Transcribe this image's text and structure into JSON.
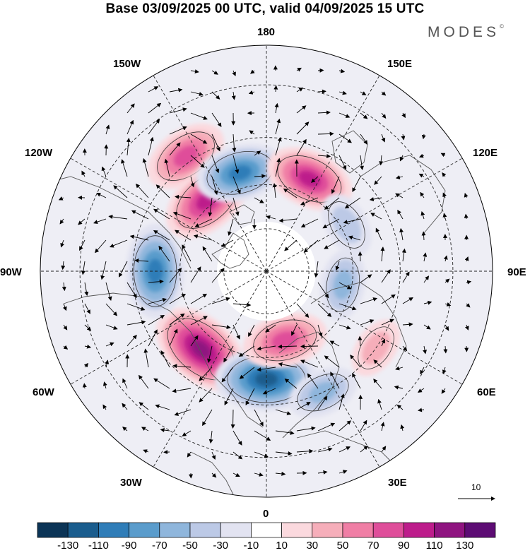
{
  "title": "Base 03/09/2025 00 UTC, valid 04/09/2025 15 UTC",
  "brand": {
    "name": "MODES",
    "mark": "©"
  },
  "map": {
    "projection": "north-polar-stereographic",
    "longitude_labels": [
      "180",
      "150E",
      "120E",
      "90E",
      "60E",
      "30E",
      "0",
      "30W",
      "60W",
      "90W",
      "120W",
      "150W"
    ],
    "vector_reference": {
      "label": "10"
    },
    "anomaly_centers": [
      {
        "name": "atlantic-high",
        "value": 120,
        "lon": -40,
        "lat": 55
      },
      {
        "name": "europe-low",
        "value": -120,
        "lon": 0,
        "lat": 53
      },
      {
        "name": "canada-low",
        "value": -100,
        "lon": -90,
        "lat": 52
      },
      {
        "name": "pacific-high",
        "value": 80,
        "lon": -145,
        "lat": 43
      },
      {
        "name": "alaska-high",
        "value": 100,
        "lon": -140,
        "lat": 58
      },
      {
        "name": "bering-low",
        "value": -90,
        "lon": -165,
        "lat": 55
      },
      {
        "name": "kamchatka-high",
        "value": 90,
        "lon": 155,
        "lat": 55
      },
      {
        "name": "siberia-low",
        "value": -40,
        "lon": 120,
        "lat": 58
      },
      {
        "name": "central-asia-low",
        "value": -50,
        "lon": 80,
        "lat": 63
      },
      {
        "name": "scandinavia-high",
        "value": 80,
        "lon": 15,
        "lat": 65
      },
      {
        "name": "med-low",
        "value": -50,
        "lon": 25,
        "lat": 45
      },
      {
        "name": "caspian-high",
        "value": 30,
        "lon": 55,
        "lat": 45
      }
    ]
  },
  "colorbar": {
    "ticks": [
      "-130",
      "-110",
      "-90",
      "-70",
      "-50",
      "-30",
      "-10",
      "10",
      "30",
      "50",
      "70",
      "90",
      "110",
      "130"
    ],
    "colors": [
      "#0b3456",
      "#1a5d8e",
      "#2f7db8",
      "#5a9ccc",
      "#8fb6dc",
      "#bcc9e6",
      "#e2e3f1",
      "#ffffff",
      "#fbd9de",
      "#f6aeba",
      "#f07ea5",
      "#df4e9a",
      "#bd1c8b",
      "#8f1480",
      "#5d0c74"
    ]
  }
}
